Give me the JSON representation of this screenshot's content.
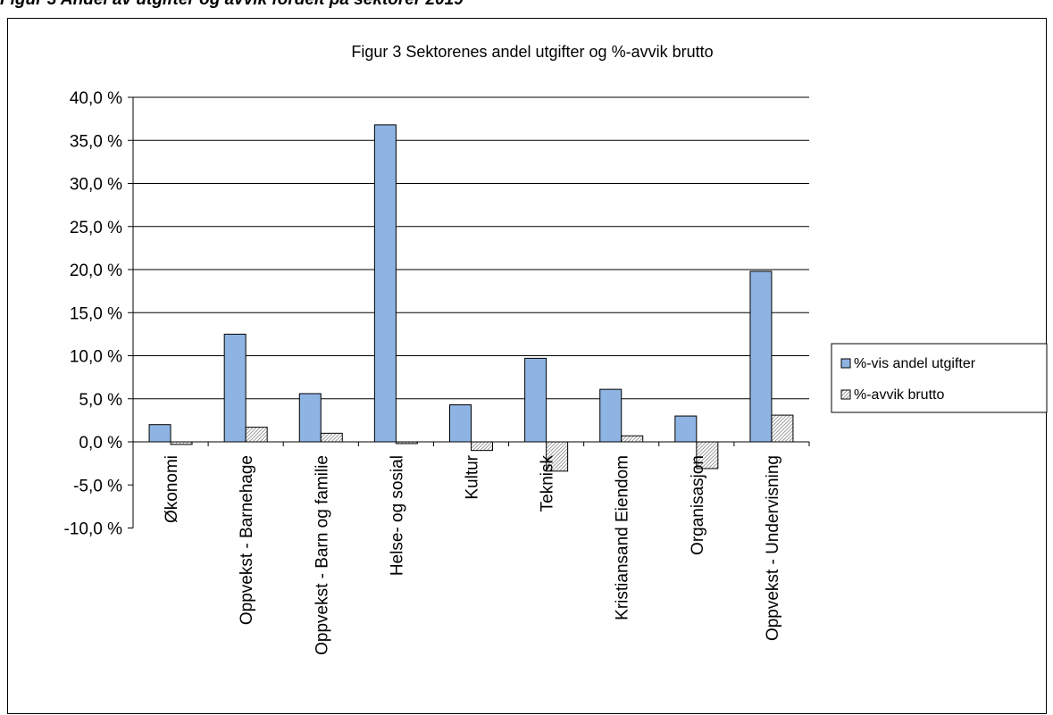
{
  "caption": "Figur 3 Andel av utgifter og avvik fordelt på sektorer 2019",
  "chart_data": {
    "type": "bar",
    "title": "Figur 3 Sektorenes andel utgifter og %-avvik brutto",
    "xlabel": "",
    "ylabel": "",
    "ylim": [
      -10,
      40
    ],
    "yticks": [
      40,
      35,
      30,
      25,
      20,
      15,
      10,
      5,
      0,
      -5,
      -10
    ],
    "ytick_labels": [
      "40,0 %",
      "35,0 %",
      "30,0 %",
      "25,0 %",
      "20,0 %",
      "15,0 %",
      "10,0 %",
      "5,0 %",
      "0,0 %",
      "-5,0 %",
      "-10,0 %"
    ],
    "grid": true,
    "legend_position": "right",
    "categories": [
      "Økonomi",
      "Oppvekst - Barnehage",
      "Oppvekst - Barn og familie",
      "Helse- og sosial",
      "Kultur",
      "Teknisk",
      "Kristiansand Eiendom",
      "Organisasjon",
      "Oppvekst - Undervisning"
    ],
    "series": [
      {
        "name": "%-vis andel utgifter",
        "color": "#8eb4e3",
        "pattern": "solid",
        "values": [
          2.0,
          12.5,
          5.6,
          36.8,
          4.3,
          9.7,
          6.1,
          3.0,
          19.8
        ]
      },
      {
        "name": "%-avvik brutto",
        "color": "#ffffff",
        "pattern": "diagonal-hatch",
        "values": [
          -0.3,
          1.7,
          1.0,
          -0.2,
          -1.0,
          -3.4,
          0.7,
          -3.1,
          3.1
        ]
      }
    ]
  }
}
